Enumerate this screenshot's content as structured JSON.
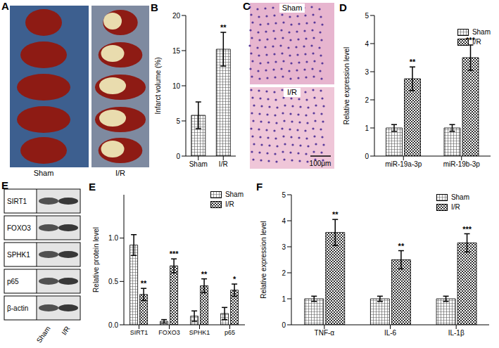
{
  "chart_data": [
    {
      "panel_label": "A",
      "type": "image",
      "labels": [
        "Sham",
        "I/R"
      ]
    },
    {
      "panel_label": "B",
      "type": "bar",
      "categories": [
        "Sham",
        "I/R"
      ],
      "values": [
        5.8,
        15.2
      ],
      "errors": [
        1.9,
        2.4
      ],
      "annotations": [
        null,
        "**"
      ],
      "color": "#555555",
      "ylabel": "Infarct volume (%)",
      "ylim": [
        0,
        20
      ],
      "yticks": [
        0,
        5,
        10,
        15,
        20
      ]
    },
    {
      "panel_label": "C",
      "type": "image",
      "labels": [
        "Sham",
        "I/R"
      ],
      "scale_bar": "100μm"
    },
    {
      "panel_label": "D",
      "type": "bar",
      "categories": [
        "miR-19a-3p",
        "miR-19b-3p"
      ],
      "series": [
        {
          "name": "Sham",
          "color": "#555555",
          "values": [
            1.0,
            1.0
          ],
          "errors": [
            0.12,
            0.12
          ],
          "annotations": [
            null,
            null
          ]
        },
        {
          "name": "I/R",
          "color": "#333333",
          "values": [
            2.75,
            3.5
          ],
          "errors": [
            0.42,
            0.45
          ],
          "annotations": [
            "**",
            "***"
          ]
        }
      ],
      "ylabel": "Relative expression level",
      "ylim": [
        0,
        5
      ],
      "yticks": [
        0,
        1,
        2,
        3,
        4,
        5
      ],
      "legend": "top-right"
    },
    {
      "panel_label": "E",
      "type": "bar",
      "blot_labels": [
        "SIRT1",
        "FOXO3",
        "SPHK1",
        "p65",
        "β-actin"
      ],
      "blot_lanes": [
        "Sham",
        "I/R"
      ],
      "categories": [
        "SIRT1",
        "FOXO3",
        "SPHK1",
        "p65"
      ],
      "series": [
        {
          "name": "Sham",
          "color": "#555555",
          "values": [
            0.92,
            0.04,
            0.1,
            0.13
          ],
          "errors": [
            0.12,
            0.02,
            0.06,
            0.07
          ],
          "annotations": [
            null,
            null,
            null,
            null
          ]
        },
        {
          "name": "I/R",
          "color": "#333333",
          "values": [
            0.35,
            0.68,
            0.45,
            0.4
          ],
          "errors": [
            0.07,
            0.08,
            0.08,
            0.07
          ],
          "annotations": [
            "**",
            "***",
            "**",
            "*"
          ]
        }
      ],
      "ylabel": "Relative protein level",
      "ylim": [
        0,
        1.5
      ],
      "yticks": [
        {
          "value": 0,
          "label": "0.0"
        },
        {
          "value": 0.5,
          "label": "0.5"
        },
        {
          "value": 1,
          "label": "1.0"
        }
      ],
      "legend": "top-right"
    },
    {
      "panel_label": "F",
      "type": "bar",
      "categories": [
        "TNF-α",
        "IL-6",
        "IL-1β"
      ],
      "series": [
        {
          "name": "Sham",
          "color": "#555555",
          "values": [
            1.0,
            1.0,
            1.0
          ],
          "errors": [
            0.1,
            0.1,
            0.1
          ],
          "annotations": [
            null,
            null,
            null
          ]
        },
        {
          "name": "I/R",
          "color": "#333333",
          "values": [
            3.55,
            2.5,
            3.15
          ],
          "errors": [
            0.5,
            0.35,
            0.35
          ],
          "annotations": [
            "**",
            "**",
            "***"
          ]
        }
      ],
      "ylabel": "Relative expression level",
      "ylim": [
        0,
        5
      ],
      "yticks": [
        0,
        1,
        2,
        3,
        4,
        5
      ],
      "legend": "top-right"
    }
  ]
}
